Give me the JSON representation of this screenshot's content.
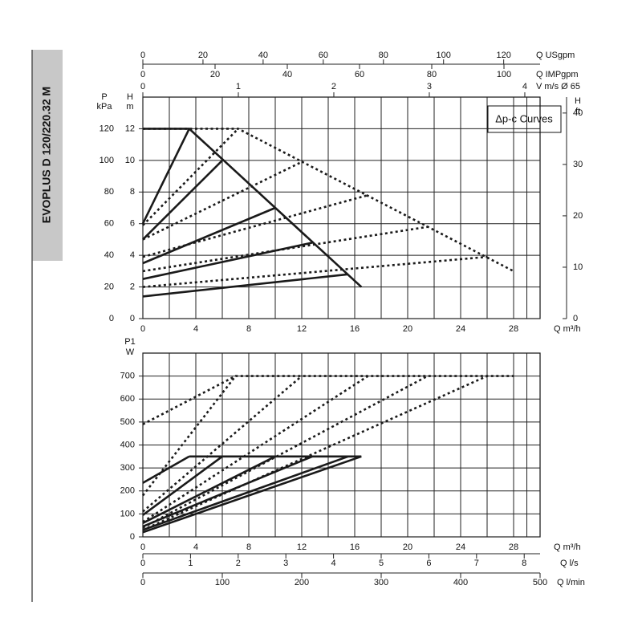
{
  "title": "EVOPLUS D 120/220.32 M",
  "chart_data": [
    {
      "type": "line",
      "annotation": "Δp-c Curves",
      "xlabel": "Q m³/h",
      "xlim": [
        0,
        30
      ],
      "xticks": [
        0,
        4,
        8,
        12,
        16,
        20,
        24,
        28
      ],
      "ylabel": "H",
      "yunit": "m",
      "ylim": [
        0,
        14
      ],
      "yticks": [
        0,
        2,
        4,
        6,
        8,
        10,
        12
      ],
      "plabel": "P",
      "punit": "kPa",
      "plim": [
        0,
        140
      ],
      "pticks": [
        0,
        20,
        40,
        60,
        80,
        100,
        120
      ],
      "y2label": "H",
      "y2unit": "ft",
      "y2lim": [
        0,
        43.1
      ],
      "y2ticks": [
        0,
        10,
        20,
        30,
        40
      ],
      "top_axes": [
        {
          "label": "Q USgpm",
          "lim": [
            0,
            132.1
          ],
          "ticks": [
            0,
            20,
            40,
            60,
            80,
            100,
            120
          ]
        },
        {
          "label": "Q IMPgpm",
          "lim": [
            0,
            110
          ],
          "ticks": [
            0,
            20,
            40,
            60,
            80,
            100
          ]
        },
        {
          "label": "V m/s Ø 65",
          "lim": [
            0,
            4.16
          ],
          "ticks": [
            0,
            1,
            2,
            3,
            4
          ]
        }
      ],
      "grid": true,
      "series": [
        {
          "style": "solid",
          "color": "#1a1a1a",
          "x": [
            0,
            3.5,
            16.5
          ],
          "values": [
            12,
            12,
            2
          ]
        },
        {
          "style": "solid",
          "color": "#1a1a1a",
          "x": [
            0,
            3.5
          ],
          "values": [
            6,
            12
          ]
        },
        {
          "style": "solid",
          "color": "#1a1a1a",
          "x": [
            0,
            6
          ],
          "values": [
            5,
            10
          ]
        },
        {
          "style": "solid",
          "color": "#1a1a1a",
          "x": [
            0,
            10
          ],
          "values": [
            3.5,
            7
          ]
        },
        {
          "style": "solid",
          "color": "#1a1a1a",
          "x": [
            0,
            12.8
          ],
          "values": [
            2.5,
            4.8
          ]
        },
        {
          "style": "solid",
          "color": "#1a1a1a",
          "x": [
            0,
            15.5
          ],
          "values": [
            1.4,
            2.8
          ]
        },
        {
          "style": "dotted",
          "color": "#1a1a1a",
          "x": [
            0,
            7.2,
            28
          ],
          "values": [
            12,
            12,
            3
          ]
        },
        {
          "style": "dotted",
          "color": "#1a1a1a",
          "x": [
            0,
            7.2
          ],
          "values": [
            5.9,
            12
          ]
        },
        {
          "style": "dotted",
          "color": "#1a1a1a",
          "x": [
            0,
            12
          ],
          "values": [
            5,
            9.9
          ]
        },
        {
          "style": "dotted",
          "color": "#1a1a1a",
          "x": [
            0,
            17
          ],
          "values": [
            3.9,
            7.8
          ]
        },
        {
          "style": "dotted",
          "color": "#1a1a1a",
          "x": [
            0,
            21.5
          ],
          "values": [
            3,
            5.8
          ]
        },
        {
          "style": "dotted",
          "color": "#1a1a1a",
          "x": [
            0,
            26
          ],
          "values": [
            2,
            3.9
          ]
        }
      ]
    },
    {
      "type": "line",
      "xlabel": "Q m³/h",
      "xlim": [
        0,
        30
      ],
      "xticks": [
        0,
        4,
        8,
        12,
        16,
        20,
        24,
        28
      ],
      "ylabel": "P1",
      "yunit": "W",
      "ylim": [
        0,
        800
      ],
      "yticks": [
        0,
        100,
        200,
        300,
        400,
        500,
        600,
        700
      ],
      "bottom_axes": [
        {
          "label": "Q l/s",
          "lim": [
            0,
            8.333
          ],
          "ticks": [
            0,
            1,
            2,
            3,
            4,
            5,
            6,
            7,
            8
          ]
        },
        {
          "label": "Q l/min",
          "lim": [
            0,
            500
          ],
          "ticks": [
            0,
            100,
            200,
            300,
            400,
            500
          ]
        }
      ],
      "grid": true,
      "series": [
        {
          "style": "solid",
          "color": "#1a1a1a",
          "x": [
            3.5,
            16.5
          ],
          "values": [
            350,
            350
          ]
        },
        {
          "style": "solid",
          "color": "#1a1a1a",
          "x": [
            0,
            3.5
          ],
          "values": [
            235,
            350
          ]
        },
        {
          "style": "solid",
          "color": "#1a1a1a",
          "x": [
            0,
            6
          ],
          "values": [
            95,
            350
          ]
        },
        {
          "style": "solid",
          "color": "#1a1a1a",
          "x": [
            0,
            10
          ],
          "values": [
            60,
            350
          ]
        },
        {
          "style": "solid",
          "color": "#1a1a1a",
          "x": [
            0,
            12.8
          ],
          "values": [
            45,
            350
          ]
        },
        {
          "style": "solid",
          "color": "#1a1a1a",
          "x": [
            0,
            15.5
          ],
          "values": [
            30,
            350
          ]
        },
        {
          "style": "solid",
          "color": "#1a1a1a",
          "x": [
            0,
            16.5
          ],
          "values": [
            20,
            350
          ]
        },
        {
          "style": "dotted",
          "color": "#1a1a1a",
          "x": [
            0,
            7,
            28
          ],
          "values": [
            490,
            700,
            700
          ]
        },
        {
          "style": "dotted",
          "color": "#1a1a1a",
          "x": [
            0,
            7
          ],
          "values": [
            180,
            700
          ]
        },
        {
          "style": "dotted",
          "color": "#1a1a1a",
          "x": [
            0,
            12
          ],
          "values": [
            110,
            700
          ]
        },
        {
          "style": "dotted",
          "color": "#1a1a1a",
          "x": [
            0,
            17
          ],
          "values": [
            65,
            700
          ]
        },
        {
          "style": "dotted",
          "color": "#1a1a1a",
          "x": [
            0,
            21.5
          ],
          "values": [
            40,
            700
          ]
        },
        {
          "style": "dotted",
          "color": "#1a1a1a",
          "x": [
            0,
            26
          ],
          "values": [
            30,
            700
          ]
        }
      ]
    }
  ]
}
